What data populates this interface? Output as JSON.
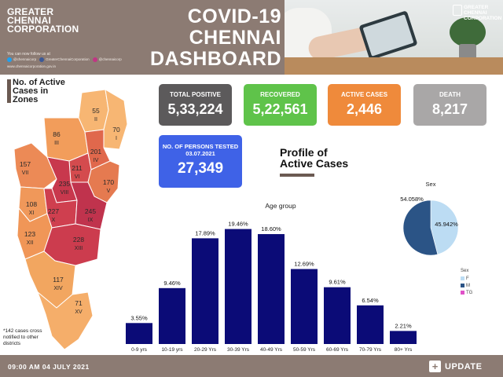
{
  "header": {
    "org_lines": [
      "GREATER",
      "CHENNAI",
      "CORPORATION"
    ],
    "follow_text": "You can now follow us at",
    "social": [
      {
        "icon": "twitter-icon",
        "handle": "@chennaicorp",
        "color": "#1da1f2"
      },
      {
        "icon": "facebook-icon",
        "handle": "GreaterChennaiCorporation",
        "color": "#3b5998"
      },
      {
        "icon": "instagram-icon",
        "handle": "@chennaicorp",
        "color": "#c13584"
      }
    ],
    "website": "www.chennaicorporation.gov.in",
    "title_lines": [
      "COVID-19",
      "CHENNAI",
      "DASHBOARD"
    ],
    "logo_lines": [
      "GREATER",
      "CHENNAI",
      "CORPORATION"
    ]
  },
  "map": {
    "title_lines": [
      "No. of Active",
      "Cases in",
      "Zones"
    ],
    "note": "*142 cases cross notified to other districts",
    "zones": [
      {
        "id": "I",
        "cases": "70"
      },
      {
        "id": "II",
        "cases": "55"
      },
      {
        "id": "III",
        "cases": "86"
      },
      {
        "id": "IV",
        "cases": "201"
      },
      {
        "id": "V",
        "cases": "170"
      },
      {
        "id": "VI",
        "cases": "211"
      },
      {
        "id": "VII",
        "cases": "157"
      },
      {
        "id": "VIII",
        "cases": "235"
      },
      {
        "id": "IX",
        "cases": "245"
      },
      {
        "id": "X",
        "cases": "227"
      },
      {
        "id": "XI",
        "cases": "108"
      },
      {
        "id": "XII",
        "cases": "123"
      },
      {
        "id": "XIII",
        "cases": "228"
      },
      {
        "id": "XIV",
        "cases": "117"
      },
      {
        "id": "XV",
        "cases": "71"
      }
    ]
  },
  "stats": {
    "total_positive": {
      "label": "TOTAL POSITIVE",
      "value": "5,33,224"
    },
    "recovered": {
      "label": "RECOVERED",
      "value": "5,22,561"
    },
    "active": {
      "label": "ACTIVE CASES",
      "value": "2,446"
    },
    "death": {
      "label": "DEATH",
      "value": "8,217"
    },
    "tested": {
      "label": "NO. OF PERSONS TESTED 03.07.2021",
      "value": "27,349"
    }
  },
  "profile": {
    "title_lines": [
      "Profile of",
      "Active Cases"
    ]
  },
  "chart_data": [
    {
      "type": "bar",
      "title": "Age group",
      "categories": [
        "0-9 yrs",
        "10-19 yrs",
        "20-29 Yrs",
        "30-39 Yrs",
        "40-49 Yrs",
        "50-59 Yrs",
        "60-69 Yrs",
        "70-79 Yrs",
        "80+ Yrs"
      ],
      "values": [
        3.55,
        9.46,
        17.89,
        19.46,
        18.6,
        12.69,
        9.61,
        6.54,
        2.21
      ],
      "data_labels": [
        "3.55%",
        "9.46%",
        "17.89%",
        "19.46%",
        "18.60%",
        "12.69%",
        "9.61%",
        "6.54%",
        "2.21%"
      ],
      "bar_color": "#0b0b77",
      "ylim": [
        0,
        21
      ]
    },
    {
      "type": "pie",
      "title": "Sex",
      "labels": [
        "F",
        "M",
        "TG"
      ],
      "values": [
        45.942,
        54.058,
        0
      ],
      "data_labels": [
        "45.942%",
        "54.058%",
        ""
      ],
      "colors": [
        "#bcdcf3",
        "#2b5486",
        "#e052c8"
      ],
      "legend_title": "Sex"
    }
  ],
  "footer": {
    "timestamp": "09:00 AM 04 JULY 2021",
    "update_label": "UPDATE"
  }
}
